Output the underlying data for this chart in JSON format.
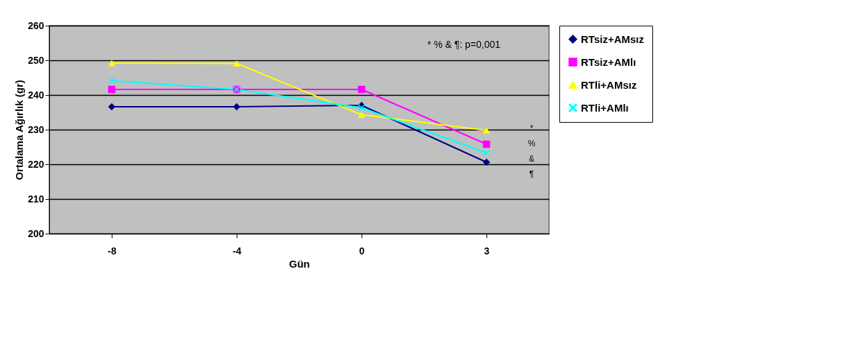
{
  "chart_data": {
    "type": "line",
    "xlabel": "Gün",
    "ylabel": "Ortalama Ağırlık (gr)",
    "categories": [
      "-8",
      "-4",
      "0",
      "3"
    ],
    "series": [
      {
        "name": "RTsiz+AMsız",
        "color": "#000080",
        "marker": "diamond",
        "values": [
          236.6,
          236.6,
          237,
          220.6
        ]
      },
      {
        "name": "RTsiz+AMlı",
        "color": "#ff00ff",
        "marker": "square",
        "values": [
          241.6,
          241.6,
          241.6,
          225.8
        ]
      },
      {
        "name": "RTli+AMsız",
        "color": "#ffff00",
        "marker": "triangle",
        "values": [
          249.2,
          249.1,
          234.3,
          229.8
        ]
      },
      {
        "name": "RTli+AMlı",
        "color": "#00ffff",
        "marker": "cross",
        "values": [
          244.1,
          241.6,
          236.3,
          223.3
        ]
      }
    ],
    "ylim": [
      200,
      260
    ],
    "yticks": [
      200,
      210,
      220,
      230,
      240,
      250,
      260
    ],
    "grid": "y",
    "legend": "right",
    "annotations": [
      "* % & ¶: p=0,001",
      "*\n%\n&\n¶"
    ]
  }
}
